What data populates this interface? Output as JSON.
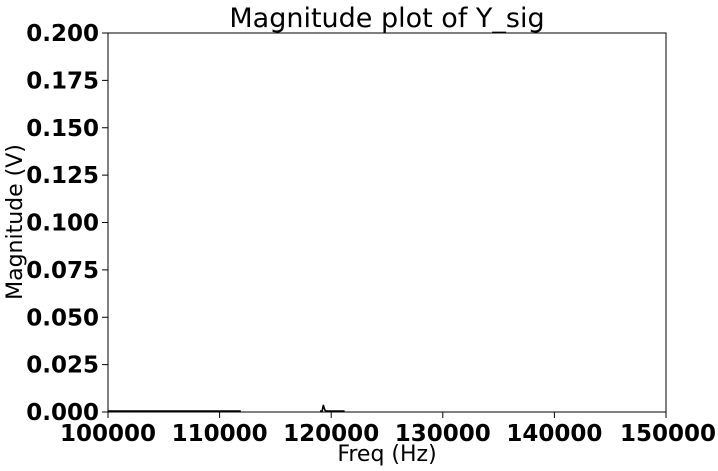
{
  "chart_data": {
    "type": "line",
    "title": "Magnitude plot of Y_sig",
    "xlabel": "Freq (Hz)",
    "ylabel": "Magnitude (V)",
    "xlim": [
      100000,
      150000
    ],
    "ylim": [
      0,
      0.2
    ],
    "xticks": [
      "100000",
      "110000",
      "120000",
      "130000",
      "140000",
      "150000"
    ],
    "yticks": [
      "0.000",
      "0.025",
      "0.050",
      "0.075",
      "0.100",
      "0.125",
      "0.150",
      "0.175",
      "0.200"
    ],
    "grid": false,
    "line_color": "#000000",
    "series": [
      {
        "segments": [
          {
            "x": [
              100000,
              104000,
              108000,
              111900
            ],
            "y": [
              0.0005,
              0.0005,
              0.0005,
              0.0005
            ]
          },
          {
            "x": [
              119000,
              119200,
              119250,
              119300,
              119350,
              119450,
              119600,
              120000,
              120500,
              121200
            ],
            "y": [
              0.0005,
              0.0006,
              0.0025,
              0.0035,
              0.0025,
              0.0008,
              0.0005,
              0.0005,
              0.0005,
              0.0005
            ]
          }
        ]
      }
    ]
  }
}
